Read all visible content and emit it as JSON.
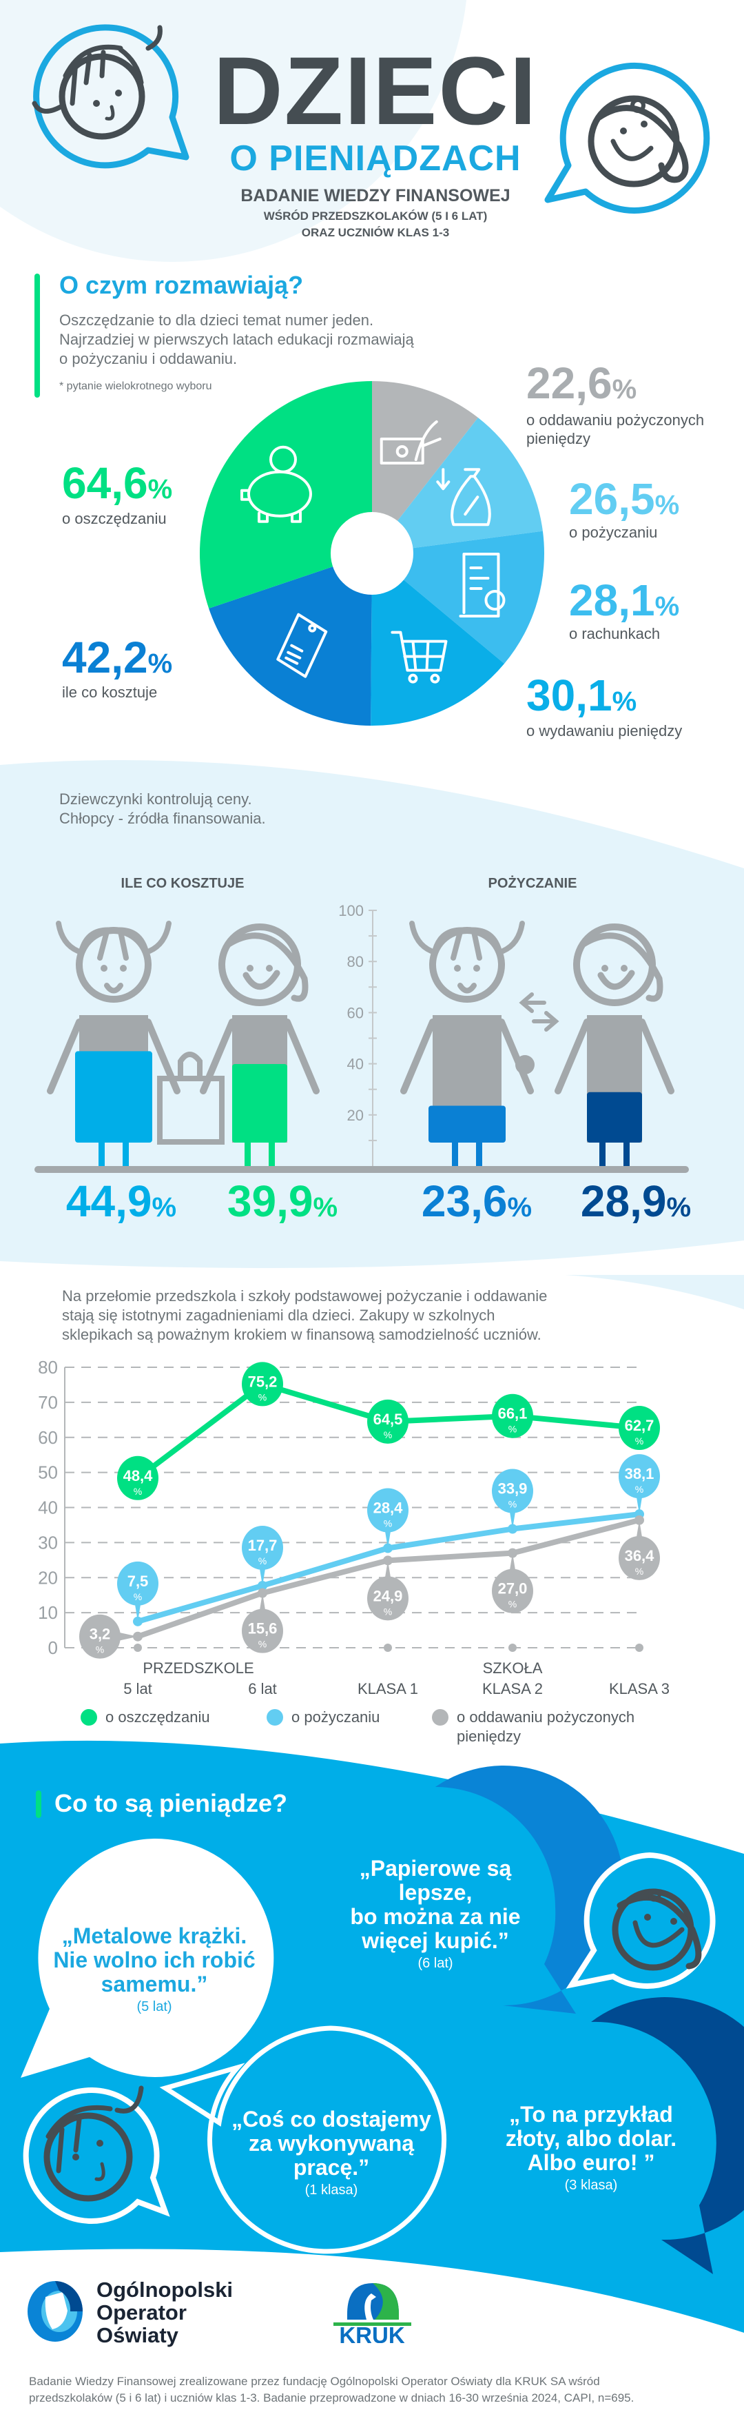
{
  "header": {
    "title": "DZIECI",
    "subtitle": "O PIENIĄDZACH",
    "study": "BADANIE WIEDZY FINANSOWEJ",
    "study_line2": "WŚRÓD PRZEDSZKOLAKÓW (5 I 6 LAT)",
    "study_line3": "ORAZ UCZNIÓW KLAS 1-3"
  },
  "topics": {
    "heading": "O czym rozmawiają?",
    "paragraph": [
      "Oszczędzanie to dla dzieci temat numer jeden.",
      "Najrzadziej w pierwszych latach edukacji rozmawiają",
      "o pożyczaniu i oddawaniu."
    ],
    "footnote": "* pytanie wielokrotnego wyboru",
    "unit": "%"
  },
  "gender": {
    "paragraph": [
      "Dziewczynki kontrolują ceny.",
      "Chłopcy - źródła finansowania."
    ]
  },
  "trend": {
    "paragraph": [
      "Na przełomie przedszkola i szkoły podstawowej pożyczanie i oddawanie",
      "stają się istotnymi zagadnieniami dla dzieci. Zakupy w szkolnych",
      "sklepikach są poważnym krokiem w finansową samodzielność uczniów."
    ]
  },
  "chart_data": [
    {
      "type": "pie",
      "note": "donut",
      "slices": [
        {
          "label": "o oddawaniu pożyczonych pieniędzy",
          "value": 22.6,
          "display": "22,6",
          "color": "#b3b6b8",
          "icon": "hand-banknote-icon"
        },
        {
          "label": "o pożyczaniu",
          "value": 26.5,
          "display": "26,5",
          "color": "#62cdf2",
          "icon": "money-bag-percent-icon"
        },
        {
          "label": "o rachunkach",
          "value": 28.1,
          "display": "28,1",
          "color": "#3cbdef",
          "icon": "receipt-icon"
        },
        {
          "label": "o wydawaniu pieniędzy",
          "value": 30.1,
          "display": "30,1",
          "color": "#0aaee8",
          "icon": "shopping-cart-icon"
        },
        {
          "label": "ile co kosztuje",
          "value": 42.2,
          "display": "42,2",
          "color": "#0a80d4",
          "icon": "price-tag-icon"
        },
        {
          "label": "o oszczędzaniu",
          "value": 64.6,
          "display": "64,6",
          "color": "#00e083",
          "icon": "piggy-bank-icon"
        }
      ]
    },
    {
      "type": "bar",
      "ylim": [
        0,
        100
      ],
      "yticks": [
        20,
        40,
        60,
        80,
        100
      ],
      "groups": [
        {
          "title": "ILE CO KOSZTUJE",
          "bars": [
            {
              "figure": "girl",
              "value": 44.9,
              "display": "44,9",
              "color": "#00aee8"
            },
            {
              "figure": "boy",
              "value": 39.9,
              "display": "39,9",
              "color": "#00e083"
            }
          ]
        },
        {
          "title": "POŻYCZANIE",
          "bars": [
            {
              "figure": "girl",
              "value": 23.6,
              "display": "23,6",
              "color": "#0a80d4"
            },
            {
              "figure": "boy",
              "value": 28.9,
              "display": "28,9",
              "color": "#004a91"
            }
          ]
        }
      ]
    },
    {
      "type": "line",
      "categories": [
        "5 lat",
        "6 lat",
        "KLASA 1",
        "KLASA 2",
        "KLASA 3"
      ],
      "category_groups": [
        {
          "label": "PRZEDSZKOLE"
        },
        {
          "label": "SZKOŁA"
        }
      ],
      "ylim": [
        0,
        80
      ],
      "yticks": [
        0,
        10,
        20,
        30,
        40,
        50,
        60,
        70,
        80
      ],
      "grid": "dashed horizontal",
      "legend": "bottom",
      "series": [
        {
          "name": "o oszczędzaniu",
          "values": [
            48.4,
            75.2,
            64.5,
            66.1,
            62.7
          ],
          "color": "#00e083"
        },
        {
          "name": "o pożyczaniu",
          "values": [
            7.5,
            17.7,
            28.4,
            33.9,
            38.1
          ],
          "color": "#62cdf2"
        },
        {
          "name": "o oddawaniu pożyczonych pieniędzy",
          "values": [
            3.2,
            15.6,
            24.9,
            27.0,
            36.4
          ],
          "color": "#b3b6b8"
        }
      ],
      "legend_lines": [
        [
          "o oszczędzaniu"
        ],
        [
          "o pożyczaniu"
        ],
        [
          "o oddawaniu pożyczonych",
          "pieniędzy"
        ]
      ]
    }
  ],
  "money": {
    "heading": "Co to są pieniądze?",
    "quotes": [
      {
        "lines": [
          "„Metalowe krążki.",
          "Nie wolno ich robić",
          "samemu.”"
        ],
        "age": "(5 lat)"
      },
      {
        "lines": [
          "„Papierowe są",
          "lepsze,",
          "bo można za nie",
          "więcej kupić.”"
        ],
        "age": "(6 lat)"
      },
      {
        "lines": [
          "„Coś co dostajemy",
          "za wykonywaną",
          "pracę.”"
        ],
        "age": "(1 klasa)"
      },
      {
        "lines": [
          "„To na przykład",
          "złoty, albo dolar.",
          "Albo euro! ”"
        ],
        "age": "(3 klasa)"
      }
    ]
  },
  "footer": {
    "org_lines": [
      "Ogólnopolski",
      "Operator",
      "Oświaty"
    ],
    "sponsor_logo": "KRUK",
    "note": [
      "Badanie Wiedzy Finansowej zrealizowane przez fundację Ogólnopolski Operator Oświaty dla KRUK SA wśród",
      "przedszkolaków (5 i 6 lat) i uczniów klas 1-3. Badanie przeprowadzone w dniach 16-30 września 2024, CAPI, n=695."
    ]
  },
  "colors": {
    "accent_blue": "#1ba8e0",
    "green": "#00e083",
    "dark_text": "#454d52",
    "section_blue": "#00aee8"
  }
}
